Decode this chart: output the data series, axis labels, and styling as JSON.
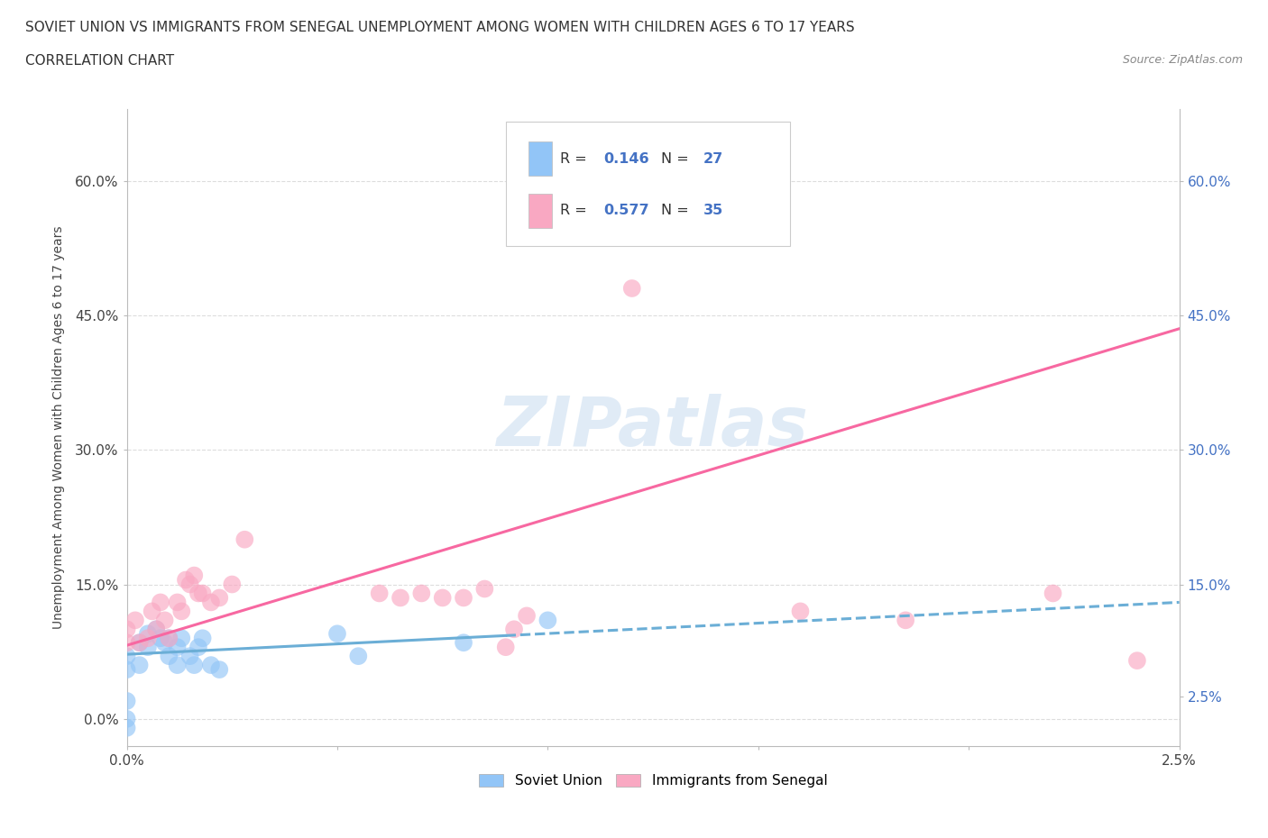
{
  "title_line1": "SOVIET UNION VS IMMIGRANTS FROM SENEGAL UNEMPLOYMENT AMONG WOMEN WITH CHILDREN AGES 6 TO 17 YEARS",
  "title_line2": "CORRELATION CHART",
  "source_text": "Source: ZipAtlas.com",
  "ylabel": "Unemployment Among Women with Children Ages 6 to 17 years",
  "xlim": [
    0.0,
    0.025
  ],
  "ylim": [
    -0.03,
    0.68
  ],
  "ytick_labels": [
    "0.0%",
    "15.0%",
    "30.0%",
    "45.0%",
    "60.0%"
  ],
  "ytick_values": [
    0.0,
    0.15,
    0.3,
    0.45,
    0.6
  ],
  "xtick_values": [
    0.0,
    0.005,
    0.01,
    0.015,
    0.02,
    0.025
  ],
  "xtick_labels": [
    "0.0%",
    "",
    "",
    "",
    "",
    "2.5%"
  ],
  "right_ytick_values": [
    0.6,
    0.45,
    0.3,
    0.15,
    0.025
  ],
  "right_ytick_labels": [
    "60.0%",
    "45.0%",
    "30.0%",
    "15.0%",
    "2.5%"
  ],
  "color_soviet": "#92C5F7",
  "color_senegal": "#F9A8C2",
  "color_line_soviet": "#6BAED6",
  "color_line_senegal": "#F768A1",
  "color_rn_value": "#4472C4",
  "watermark": "ZIPatlas",
  "background_color": "#FFFFFF",
  "soviet_scatter_x": [
    0.0,
    0.0,
    0.0,
    0.0,
    0.0,
    0.0003,
    0.0003,
    0.0005,
    0.0005,
    0.0007,
    0.0008,
    0.0009,
    0.001,
    0.001,
    0.0012,
    0.0012,
    0.0013,
    0.0015,
    0.0016,
    0.0017,
    0.0018,
    0.002,
    0.0022,
    0.005,
    0.0055,
    0.008,
    0.01
  ],
  "soviet_scatter_y": [
    0.02,
    0.0,
    -0.01,
    0.055,
    0.07,
    0.06,
    0.085,
    0.08,
    0.095,
    0.1,
    0.09,
    0.085,
    0.07,
    0.09,
    0.06,
    0.08,
    0.09,
    0.07,
    0.06,
    0.08,
    0.09,
    0.06,
    0.055,
    0.095,
    0.07,
    0.085,
    0.11
  ],
  "senegal_scatter_x": [
    0.0,
    0.0,
    0.0002,
    0.0003,
    0.0005,
    0.0006,
    0.0007,
    0.0008,
    0.0009,
    0.001,
    0.0012,
    0.0013,
    0.0014,
    0.0015,
    0.0016,
    0.0017,
    0.0018,
    0.002,
    0.0022,
    0.0025,
    0.0028,
    0.006,
    0.0065,
    0.007,
    0.0075,
    0.008,
    0.0085,
    0.009,
    0.0092,
    0.0095,
    0.012,
    0.016,
    0.0185,
    0.022,
    0.024
  ],
  "senegal_scatter_y": [
    0.085,
    0.1,
    0.11,
    0.085,
    0.09,
    0.12,
    0.1,
    0.13,
    0.11,
    0.09,
    0.13,
    0.12,
    0.155,
    0.15,
    0.16,
    0.14,
    0.14,
    0.13,
    0.135,
    0.15,
    0.2,
    0.14,
    0.135,
    0.14,
    0.135,
    0.135,
    0.145,
    0.08,
    0.1,
    0.115,
    0.48,
    0.12,
    0.11,
    0.14,
    0.065
  ],
  "soviet_line_x": [
    0.0,
    0.025
  ],
  "soviet_line_y": [
    0.072,
    0.13
  ],
  "senegal_line_x": [
    0.0,
    0.025
  ],
  "senegal_line_y": [
    0.082,
    0.435
  ],
  "grid_color": "#DDDDDD",
  "title_fontsize": 11,
  "axis_label_fontsize": 10,
  "tick_fontsize": 11
}
